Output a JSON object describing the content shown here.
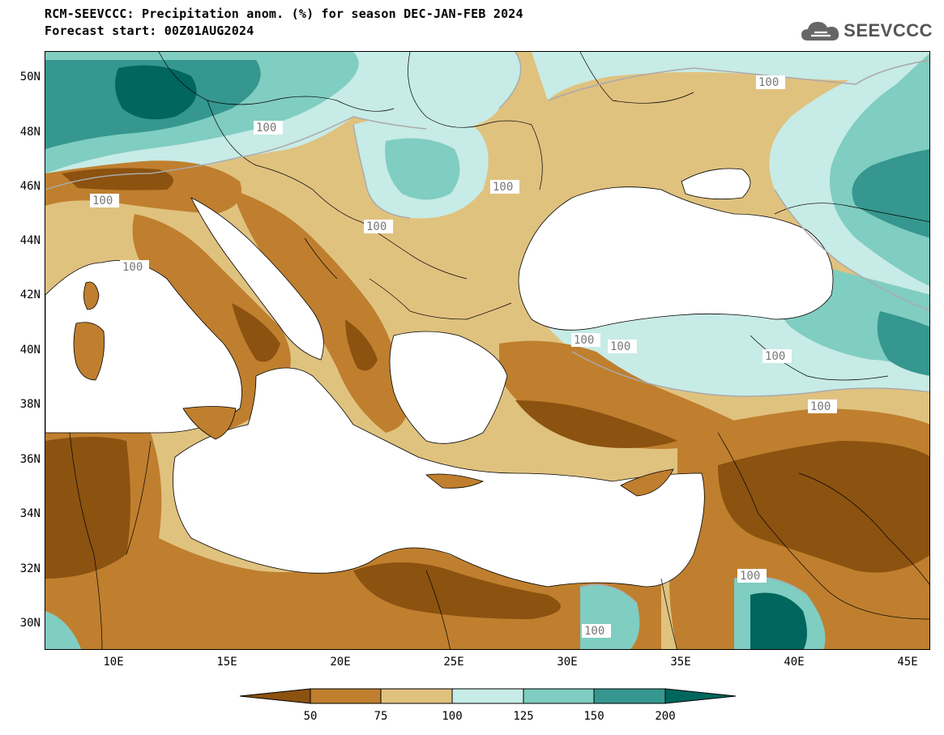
{
  "title": {
    "line1": "RCM-SEEVCCC: Precipitation anom. (%) for season DEC-JAN-FEB 2024",
    "line2": "Forecast start: 00Z01AUG2024"
  },
  "logo": {
    "text": "SEEVCCC",
    "icon": "cloud-icon"
  },
  "map": {
    "lat_labels": [
      "50N",
      "48N",
      "46N",
      "44N",
      "42N",
      "40N",
      "38N",
      "36N",
      "34N",
      "32N",
      "30N"
    ],
    "lon_labels": [
      "10E",
      "15E",
      "20E",
      "25E",
      "30E",
      "35E",
      "40E",
      "45E"
    ],
    "contour_label": "100",
    "colors": {
      "lt50": "#8c5210",
      "50_75": "#bf7f2e",
      "75_100": "#e0c27f",
      "100_125": "#c7ebe6",
      "125_150": "#80cdc1",
      "150_200": "#35978f",
      "gt200": "#01665e",
      "sea": "#ffffff"
    }
  },
  "colorbar": {
    "ticks": [
      "50",
      "75",
      "100",
      "125",
      "150",
      "200"
    ]
  }
}
